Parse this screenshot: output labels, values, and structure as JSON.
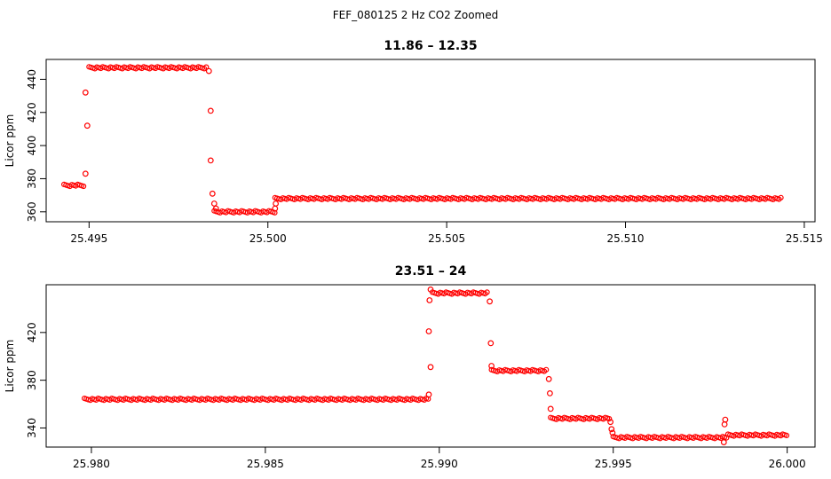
{
  "figure": {
    "title": "FEF_080125  2 Hz CO2 Zoomed"
  },
  "colors": {
    "points": "#ff0000",
    "axes": "#000000",
    "background": "#ffffff"
  },
  "chart_data": [
    {
      "type": "scatter",
      "title": "11.86 – 12.35",
      "xlabel": "",
      "ylabel": "Licor ppm",
      "xlim": [
        25.4938,
        25.5153
      ],
      "ylim": [
        354,
        452
      ],
      "x_ticks": [
        25.495,
        25.5,
        25.505,
        25.51,
        25.515
      ],
      "x_tick_labels": [
        "25.495",
        "25.500",
        "25.505",
        "25.510",
        "25.515"
      ],
      "y_ticks": [
        360,
        380,
        400,
        420,
        440
      ],
      "y_tick_labels": [
        "360",
        "380",
        "400",
        "420",
        "440"
      ],
      "grid": false,
      "marker": "open-circle",
      "segments": [
        {
          "x_start": 25.4943,
          "x_end": 25.4949,
          "y": 376
        },
        {
          "x_start": 25.495,
          "x_end": 25.4983,
          "y": 447
        },
        {
          "x_start": 25.4985,
          "x_end": 25.5002,
          "y": 360
        },
        {
          "x_start": 25.5002,
          "x_end": 25.5144,
          "y": 368
        }
      ],
      "transition_points": [
        [
          25.4949,
          383
        ],
        [
          25.49495,
          412
        ],
        [
          25.4949,
          432
        ],
        [
          25.49835,
          445
        ],
        [
          25.4984,
          421
        ],
        [
          25.4984,
          391
        ],
        [
          25.49845,
          371
        ],
        [
          25.4985,
          365
        ],
        [
          25.49855,
          362
        ],
        [
          25.5002,
          362
        ],
        [
          25.50022,
          365
        ]
      ]
    },
    {
      "type": "scatter",
      "title": "23.51 – 24",
      "xlabel": "",
      "ylabel": "Licor ppm",
      "xlim": [
        25.9787,
        26.0008
      ],
      "ylim": [
        324,
        460
      ],
      "x_ticks": [
        25.98,
        25.985,
        25.99,
        25.995,
        26.0
      ],
      "x_tick_labels": [
        "25.980",
        "25.985",
        "25.990",
        "25.995",
        "26.000"
      ],
      "y_ticks": [
        340,
        380,
        420
      ],
      "y_tick_labels": [
        "340",
        "380",
        "420"
      ],
      "grid": false,
      "marker": "open-circle",
      "segments": [
        {
          "x_start": 25.9798,
          "x_end": 25.9897,
          "y": 364
        },
        {
          "x_start": 25.9898,
          "x_end": 25.9914,
          "y": 453
        },
        {
          "x_start": 25.9915,
          "x_end": 25.9931,
          "y": 388
        },
        {
          "x_start": 25.9932,
          "x_end": 25.9949,
          "y": 348
        },
        {
          "x_start": 25.995,
          "x_end": 25.9983,
          "y": 332
        },
        {
          "x_start": 25.9983,
          "x_end": 26.0,
          "y": 334
        }
      ],
      "transition_points": [
        [
          25.9897,
          368
        ],
        [
          25.98975,
          391
        ],
        [
          25.9897,
          421
        ],
        [
          25.98972,
          447
        ],
        [
          25.98975,
          456
        ],
        [
          25.99145,
          446
        ],
        [
          25.99148,
          411
        ],
        [
          25.9915,
          392
        ],
        [
          25.99315,
          381
        ],
        [
          25.99318,
          369
        ],
        [
          25.9932,
          356
        ],
        [
          25.99492,
          345
        ],
        [
          25.99495,
          339
        ],
        [
          25.99498,
          336
        ],
        [
          25.9982,
          343
        ],
        [
          25.99822,
          347
        ],
        [
          25.99818,
          328
        ]
      ]
    }
  ]
}
